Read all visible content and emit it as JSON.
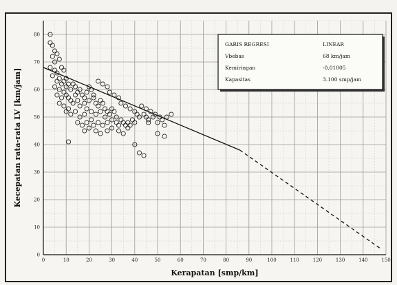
{
  "chart_data": {
    "type": "scatter",
    "xlabel": "Kerapatan [smp/km]",
    "ylabel": "Kecepatan rata-rata LV [km/jam]",
    "xlim": [
      0,
      150
    ],
    "ylim": [
      0,
      85
    ],
    "x_ticks": [
      0,
      10,
      20,
      30,
      40,
      50,
      60,
      70,
      80,
      90,
      100,
      110,
      120,
      130,
      140,
      150
    ],
    "y_ticks": [
      0,
      10,
      20,
      30,
      40,
      50,
      60,
      70,
      80
    ],
    "grid": true,
    "legend": {
      "position": "top-right",
      "rows": [
        {
          "label": "GARIS REGRESI",
          "value": "LINEAR"
        },
        {
          "label": "Vbebas",
          "value": "68 km/jam"
        },
        {
          "label": "Kemiringan",
          "value": "-0,01005"
        },
        {
          "label": "Kapasitas",
          "value": "3.100 smp/jam"
        }
      ]
    },
    "series": [
      {
        "kind": "points",
        "points": [
          [
            3,
            80
          ],
          [
            3,
            77
          ],
          [
            4,
            76
          ],
          [
            5,
            74
          ],
          [
            4,
            72
          ],
          [
            6,
            73
          ],
          [
            5,
            70
          ],
          [
            7,
            71
          ],
          [
            3,
            68
          ],
          [
            5,
            67
          ],
          [
            6,
            66
          ],
          [
            8,
            68
          ],
          [
            9,
            67
          ],
          [
            4,
            65
          ],
          [
            6,
            63
          ],
          [
            7,
            64
          ],
          [
            8,
            62
          ],
          [
            9,
            63
          ],
          [
            10,
            64
          ],
          [
            11,
            62
          ],
          [
            5,
            61
          ],
          [
            7,
            60
          ],
          [
            9,
            59
          ],
          [
            10,
            61
          ],
          [
            12,
            60
          ],
          [
            13,
            62
          ],
          [
            14,
            61
          ],
          [
            6,
            58
          ],
          [
            8,
            57
          ],
          [
            10,
            58
          ],
          [
            11,
            57
          ],
          [
            12,
            56
          ],
          [
            14,
            58
          ],
          [
            15,
            59
          ],
          [
            16,
            60
          ],
          [
            17,
            58
          ],
          [
            18,
            57
          ],
          [
            19,
            59
          ],
          [
            20,
            61
          ],
          [
            21,
            60
          ],
          [
            22,
            58
          ],
          [
            7,
            55
          ],
          [
            9,
            54
          ],
          [
            11,
            53
          ],
          [
            13,
            55
          ],
          [
            15,
            56
          ],
          [
            16,
            54
          ],
          [
            18,
            55
          ],
          [
            20,
            56
          ],
          [
            22,
            57
          ],
          [
            23,
            55
          ],
          [
            24,
            54
          ],
          [
            25,
            56
          ],
          [
            26,
            55
          ],
          [
            27,
            53
          ],
          [
            10,
            52
          ],
          [
            12,
            51
          ],
          [
            14,
            52
          ],
          [
            16,
            50
          ],
          [
            18,
            51
          ],
          [
            19,
            53
          ],
          [
            21,
            52
          ],
          [
            23,
            51
          ],
          [
            25,
            52
          ],
          [
            27,
            50
          ],
          [
            28,
            52
          ],
          [
            29,
            51
          ],
          [
            30,
            53
          ],
          [
            31,
            52
          ],
          [
            32,
            50
          ],
          [
            15,
            48
          ],
          [
            17,
            47
          ],
          [
            19,
            48
          ],
          [
            21,
            49
          ],
          [
            22,
            47
          ],
          [
            24,
            48
          ],
          [
            26,
            47
          ],
          [
            28,
            48
          ],
          [
            30,
            49
          ],
          [
            32,
            48
          ],
          [
            33,
            47
          ],
          [
            34,
            49
          ],
          [
            35,
            48
          ],
          [
            36,
            47
          ],
          [
            37,
            48
          ],
          [
            38,
            47
          ],
          [
            39,
            49
          ],
          [
            40,
            48
          ],
          [
            18,
            45
          ],
          [
            20,
            46
          ],
          [
            23,
            45
          ],
          [
            25,
            44
          ],
          [
            28,
            45
          ],
          [
            30,
            46
          ],
          [
            33,
            45
          ],
          [
            35,
            44
          ],
          [
            37,
            46
          ],
          [
            11,
            41
          ],
          [
            40,
            40
          ],
          [
            42,
            37
          ],
          [
            44,
            36
          ],
          [
            43,
            54
          ],
          [
            45,
            53
          ],
          [
            47,
            52
          ],
          [
            49,
            51
          ],
          [
            51,
            50
          ],
          [
            52,
            49
          ],
          [
            54,
            50
          ],
          [
            56,
            51
          ],
          [
            46,
            49
          ],
          [
            48,
            50
          ],
          [
            50,
            48
          ],
          [
            53,
            47
          ],
          [
            50,
            44
          ],
          [
            53,
            43
          ],
          [
            24,
            63
          ],
          [
            26,
            62
          ],
          [
            28,
            61
          ],
          [
            29,
            59
          ],
          [
            31,
            58
          ],
          [
            33,
            57
          ],
          [
            34,
            55
          ],
          [
            36,
            54
          ],
          [
            38,
            53
          ],
          [
            40,
            52
          ],
          [
            41,
            51
          ],
          [
            42,
            50
          ],
          [
            44,
            51
          ],
          [
            45,
            50
          ],
          [
            46,
            48
          ]
        ]
      },
      {
        "kind": "regression",
        "style": "solid",
        "points": [
          [
            0,
            68
          ],
          [
            86,
            38
          ]
        ]
      },
      {
        "kind": "regression",
        "style": "dashed",
        "points": [
          [
            86,
            38
          ],
          [
            148,
            2
          ]
        ]
      }
    ]
  }
}
